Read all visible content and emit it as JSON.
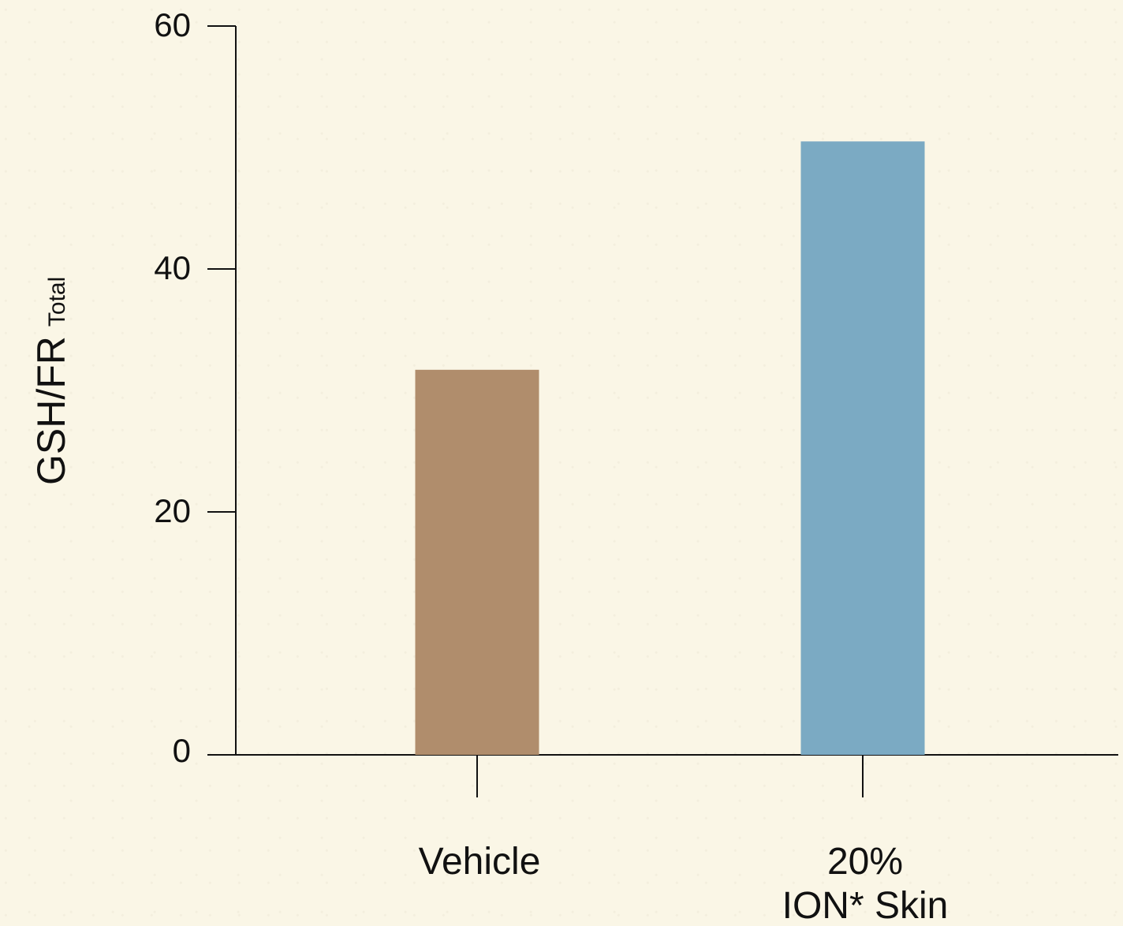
{
  "chart_data": {
    "type": "bar",
    "categories": [
      [
        "Vehicle"
      ],
      [
        "20%",
        "ION* Skin"
      ]
    ],
    "values": [
      31.7,
      50.5
    ],
    "colors": [
      "#b08d6c",
      "#7baac3"
    ],
    "ylabel": "GSH/FR",
    "ylabel_subscript": "Total",
    "ylim": [
      0,
      60
    ],
    "yticks": [
      0,
      20,
      40,
      60
    ],
    "grid": false
  }
}
